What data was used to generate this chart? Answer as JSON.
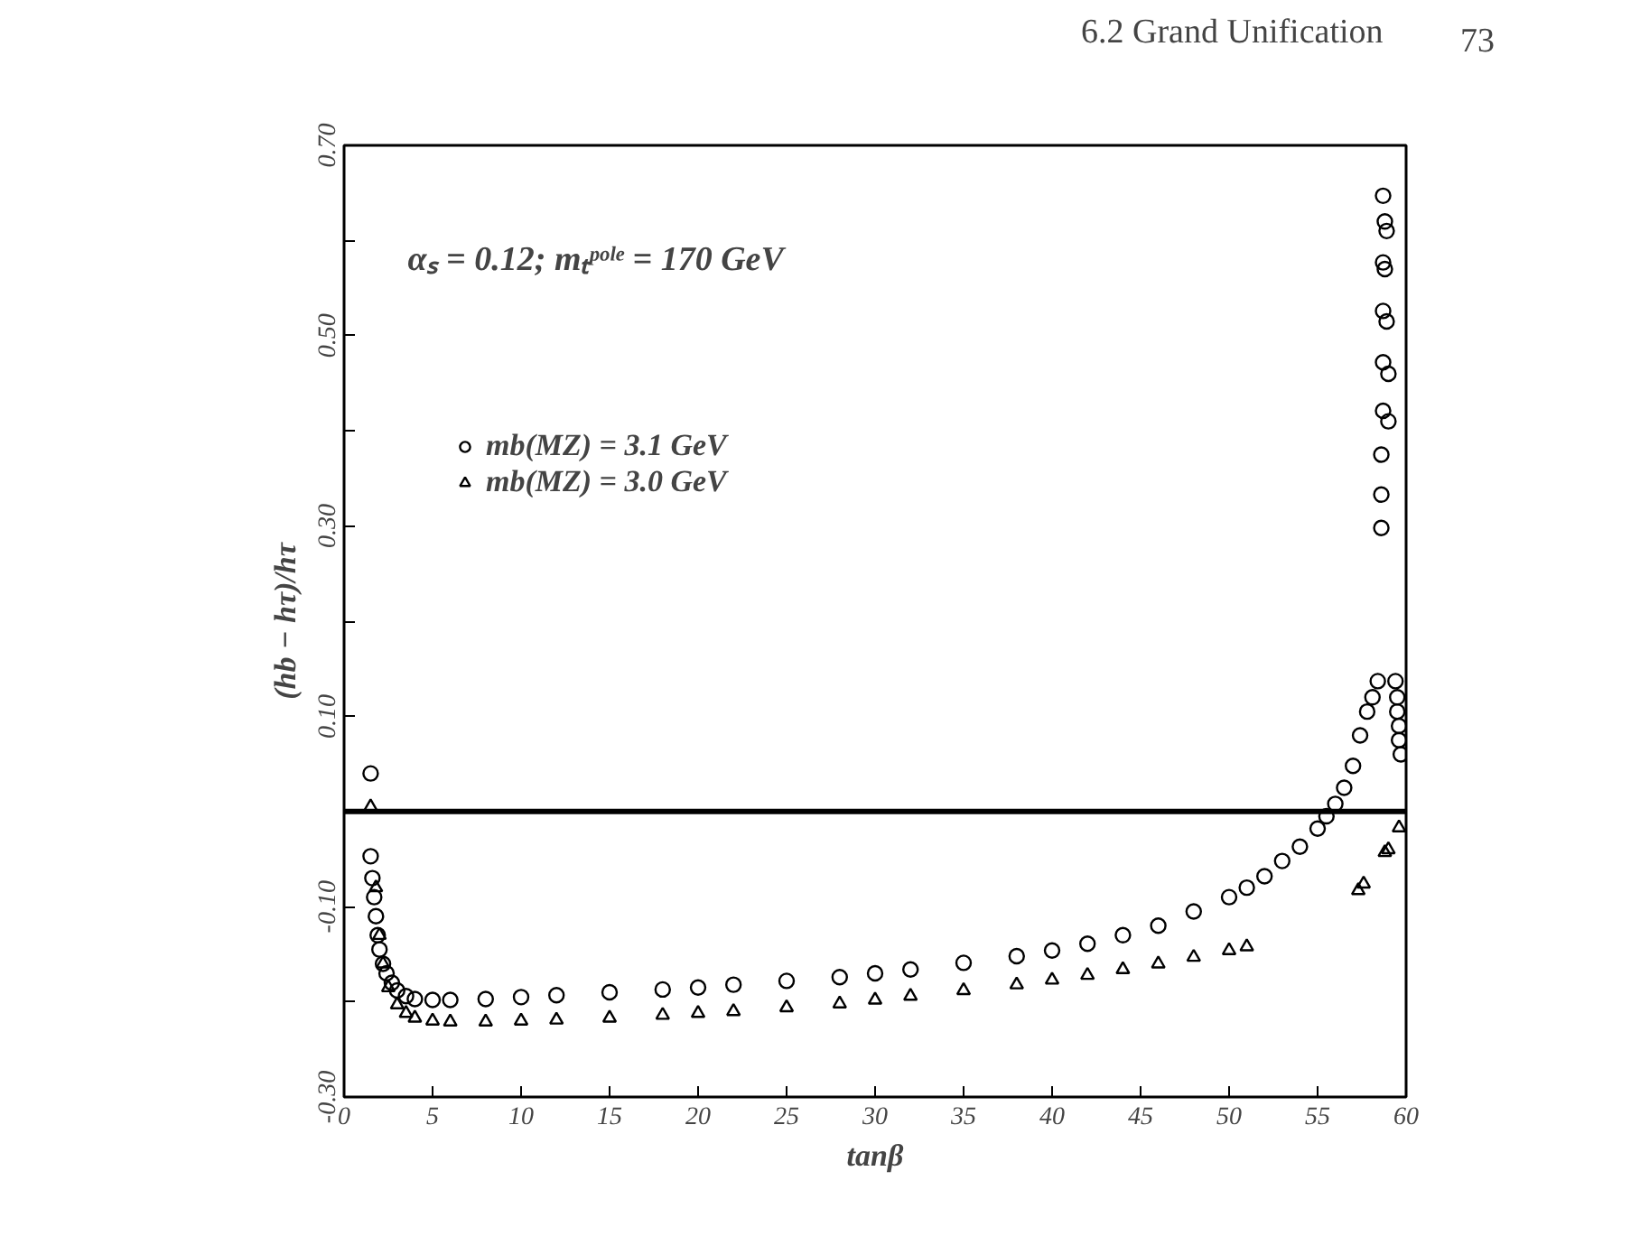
{
  "chart_data": {
    "type": "scatter",
    "annotations": [
      "6.2 Grand Unification",
      "73",
      "αₛ = 0.12; mₜᵖᵒˡᵉ = 170 GeV"
    ],
    "xlabel": "tanβ",
    "ylabel": "(hb − hτ)/hτ",
    "xlim": [
      0,
      60
    ],
    "ylim": [
      -0.3,
      0.7
    ],
    "xticks": [
      0,
      5,
      10,
      15,
      20,
      25,
      30,
      35,
      40,
      45,
      50,
      55,
      60
    ],
    "yticks": [
      {
        "value": -0.3,
        "label": "-0.30"
      },
      {
        "value": -0.2,
        "label": null
      },
      {
        "value": -0.1,
        "label": "-0.10"
      },
      {
        "value": 0,
        "label": null
      },
      {
        "value": 0.1,
        "label": "0.10"
      },
      {
        "value": 0.2,
        "label": null
      },
      {
        "value": 0.3,
        "label": "0.30"
      },
      {
        "value": 0.4,
        "label": null
      },
      {
        "value": 0.5,
        "label": "0.50"
      },
      {
        "value": 0.6,
        "label": null
      },
      {
        "value": 0.7,
        "label": "0.70"
      }
    ],
    "grid": false,
    "legend": "top left",
    "ref_lines": [
      {
        "axis": "y",
        "value": 0,
        "color": "#000000"
      }
    ],
    "series": [
      {
        "name": "mb(MZ) = 3.1 GeV",
        "color": "#000000",
        "marker": "circle",
        "x": [
          1.5,
          1.5,
          1.6,
          1.7,
          1.8,
          1.9,
          2.0,
          2.2,
          2.4,
          2.7,
          3,
          3.5,
          4,
          5,
          6,
          8,
          10,
          12,
          15,
          18,
          20,
          22,
          25,
          28,
          30,
          32,
          35,
          38,
          40,
          42,
          44,
          46,
          48,
          50,
          51,
          52,
          53,
          54,
          55,
          55.5,
          56,
          56.5,
          57,
          57.4,
          57.8,
          58.1,
          58.4,
          59.4,
          59.5,
          59.5,
          59.6,
          59.6,
          59.7,
          58.7,
          58.8,
          58.9,
          58.7,
          58.8,
          58.7,
          58.9,
          58.7,
          59.0,
          58.7,
          59.0,
          58.6,
          58.6,
          58.6
        ],
        "values": [
          0.04,
          -0.047,
          -0.07,
          -0.09,
          -0.11,
          -0.13,
          -0.145,
          -0.16,
          -0.17,
          -0.18,
          -0.188,
          -0.194,
          -0.197,
          -0.198,
          -0.198,
          -0.197,
          -0.195,
          -0.193,
          -0.19,
          -0.187,
          -0.185,
          -0.182,
          -0.178,
          -0.174,
          -0.17,
          -0.166,
          -0.159,
          -0.152,
          -0.146,
          -0.139,
          -0.13,
          -0.12,
          -0.105,
          -0.09,
          -0.08,
          -0.068,
          -0.052,
          -0.037,
          -0.018,
          -0.005,
          0.008,
          0.025,
          0.048,
          0.08,
          0.105,
          0.12,
          0.137,
          0.137,
          0.12,
          0.105,
          0.09,
          0.075,
          0.06,
          0.647,
          0.62,
          0.61,
          0.577,
          0.57,
          0.526,
          0.515,
          0.472,
          0.46,
          0.421,
          0.41,
          0.375,
          0.333,
          0.298
        ]
      },
      {
        "name": "mb(MZ) = 3.0 GeV",
        "color": "#000000",
        "marker": "triangle",
        "x": [
          1.5,
          1.8,
          2.0,
          2.2,
          2.5,
          3,
          3.5,
          4,
          5,
          6,
          8,
          10,
          12,
          15,
          18,
          20,
          22,
          25,
          28,
          30,
          32,
          35,
          38,
          40,
          42,
          44,
          46,
          48,
          50,
          51,
          57.3,
          57.6,
          58.8,
          59.0,
          59.6
        ],
        "values": [
          0.005,
          -0.08,
          -0.13,
          -0.16,
          -0.185,
          -0.203,
          -0.212,
          -0.217,
          -0.22,
          -0.221,
          -0.221,
          -0.22,
          -0.219,
          -0.217,
          -0.214,
          -0.212,
          -0.21,
          -0.206,
          -0.202,
          -0.198,
          -0.194,
          -0.188,
          -0.182,
          -0.177,
          -0.172,
          -0.166,
          -0.16,
          -0.153,
          -0.146,
          -0.142,
          -0.083,
          -0.076,
          -0.043,
          -0.04,
          -0.017
        ]
      }
    ]
  }
}
